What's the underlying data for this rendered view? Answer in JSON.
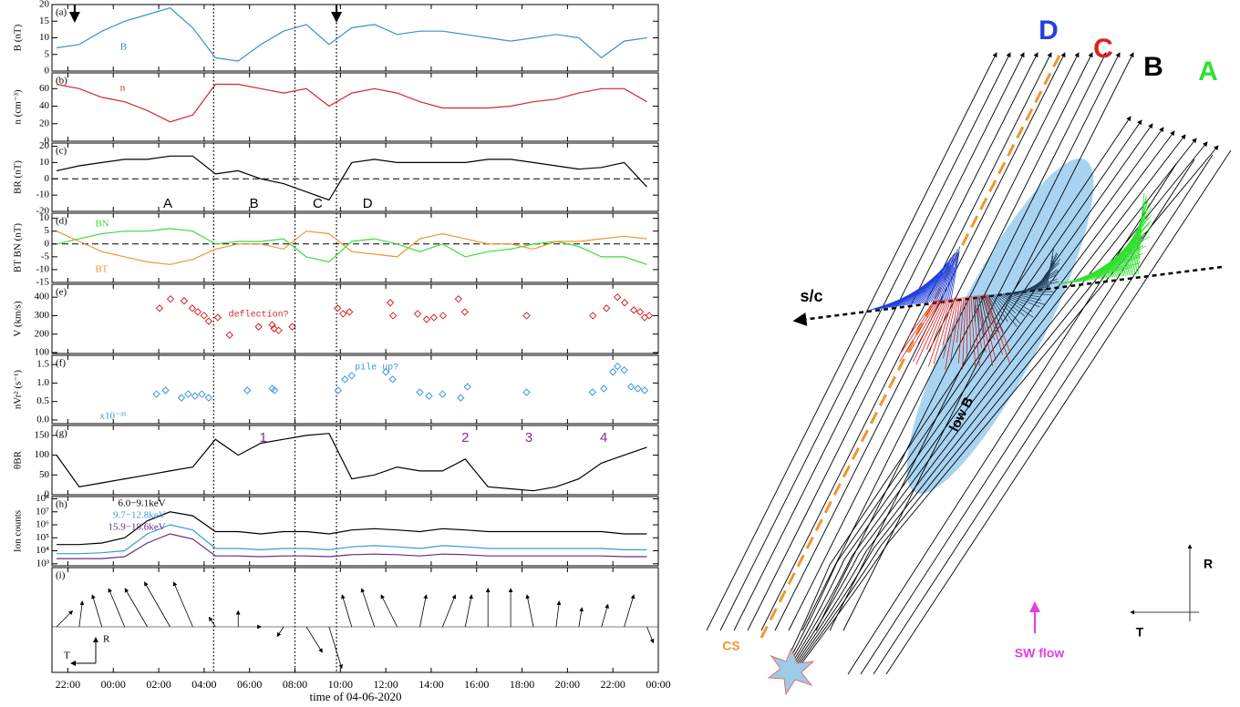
{
  "time_axis": {
    "xlim": [
      -2.7,
      24.0
    ],
    "xticks": [
      {
        "value": -2,
        "label": "22:00"
      },
      {
        "value": 0,
        "label": "00:00"
      },
      {
        "value": 2,
        "label": "02:00"
      },
      {
        "value": 4,
        "label": "04:00"
      },
      {
        "value": 6,
        "label": "06:00"
      },
      {
        "value": 8,
        "label": "08:00"
      },
      {
        "value": 10,
        "label": "10:00"
      },
      {
        "value": 12,
        "label": "12:00"
      },
      {
        "value": 14,
        "label": "14:00"
      },
      {
        "value": 16,
        "label": "16:00"
      },
      {
        "value": 18,
        "label": "18:00"
      },
      {
        "value": 20,
        "label": "20:00"
      },
      {
        "value": 22,
        "label": "22:00"
      },
      {
        "value": 24,
        "label": "00:00"
      }
    ],
    "xlabel": "time of 04-06-2020",
    "event_times": [
      4.42,
      8.0,
      9.83
    ]
  },
  "chart_data": [
    {
      "type": "line",
      "label": "(a)",
      "ylabel": "B (nT)",
      "ylim": [
        0,
        20
      ],
      "yticks": [
        0,
        5,
        10,
        15,
        20
      ],
      "arrow_times": [
        -1.7,
        9.83
      ],
      "x": [
        -2.5,
        -1.5,
        -0.5,
        0.5,
        1.5,
        2.5,
        3.5,
        4.5,
        5.5,
        6.5,
        7.5,
        8.5,
        9.5,
        10.5,
        11.5,
        12.5,
        13.5,
        14.5,
        15.5,
        16.5,
        17.5,
        18.5,
        19.5,
        20.5,
        21.5,
        22.5,
        23.5
      ],
      "series": [
        {
          "name": "B",
          "color": "#3a8fdc",
          "values": [
            7,
            8,
            12,
            15,
            17,
            19,
            13,
            4,
            3,
            8,
            12,
            14,
            8,
            13,
            14,
            11,
            12,
            12,
            11,
            10,
            9,
            10,
            11,
            10,
            4,
            9,
            10
          ]
        }
      ]
    },
    {
      "type": "line",
      "label": "(b)",
      "ylabel": "n (cm⁻³)",
      "ylim": [
        0,
        78
      ],
      "yticks": [
        0,
        20,
        40,
        60
      ],
      "x": [
        -2.5,
        -1.5,
        -0.5,
        0.5,
        1.5,
        2.5,
        3.5,
        4.5,
        5.5,
        6.5,
        7.5,
        8.5,
        9.5,
        10.5,
        11.5,
        12.5,
        13.5,
        14.5,
        15.5,
        16.5,
        17.5,
        18.5,
        19.5,
        20.5,
        21.5,
        22.5,
        23.5
      ],
      "series": [
        {
          "name": "n",
          "color": "#d62728",
          "values": [
            65,
            60,
            50,
            45,
            35,
            22,
            30,
            65,
            65,
            60,
            55,
            60,
            40,
            55,
            60,
            55,
            45,
            38,
            38,
            38,
            40,
            45,
            48,
            55,
            60,
            60,
            45
          ]
        }
      ]
    },
    {
      "type": "line",
      "label": "(c)",
      "ylabel": "BR (nT)",
      "ylim": [
        -20,
        22
      ],
      "yticks": [
        -20,
        -10,
        0,
        10,
        20
      ],
      "zero_line": true,
      "regions": [
        "A",
        "B",
        "C",
        "D"
      ],
      "x": [
        -2.5,
        -1.5,
        -0.5,
        0.5,
        1.5,
        2.5,
        3.5,
        4.5,
        5.5,
        6.5,
        7.5,
        8.5,
        9.5,
        10.5,
        11.5,
        12.5,
        13.5,
        14.5,
        15.5,
        16.5,
        17.5,
        18.5,
        19.5,
        20.5,
        21.5,
        22.5,
        23.5
      ],
      "series": [
        {
          "color": "#000000",
          "values": [
            5,
            8,
            10,
            12,
            12,
            14,
            14,
            3,
            5,
            0,
            -3,
            -8,
            -13,
            10,
            12,
            10,
            10,
            10,
            10,
            12,
            12,
            10,
            8,
            6,
            7,
            10,
            -5
          ]
        }
      ]
    },
    {
      "type": "line",
      "label": "(d)",
      "ylabel": "BT BN (nT)",
      "ylim": [
        -15,
        12
      ],
      "yticks": [
        -15,
        -10,
        -5,
        0,
        5,
        10
      ],
      "zero_line": true,
      "x": [
        -2.5,
        -1.5,
        -0.5,
        0.5,
        1.5,
        2.5,
        3.5,
        4.5,
        5.5,
        6.5,
        7.5,
        8.5,
        9.5,
        10.5,
        11.5,
        12.5,
        13.5,
        14.5,
        15.5,
        16.5,
        17.5,
        18.5,
        19.5,
        20.5,
        21.5,
        22.5,
        23.5
      ],
      "series": [
        {
          "name": "BN",
          "color": "#3ddc3d",
          "values": [
            0,
            2,
            4,
            5,
            5,
            6,
            5,
            0,
            1,
            1,
            2,
            -5,
            -7,
            1,
            2,
            0,
            -3,
            0,
            -5,
            -3,
            -2,
            0,
            1,
            -1,
            -5,
            -5,
            -8
          ]
        },
        {
          "name": "BT",
          "color": "#f0962e",
          "values": [
            5,
            1,
            -3,
            -5,
            -7,
            -8,
            -6,
            -2,
            0,
            0,
            -2,
            5,
            4,
            -3,
            -4,
            -5,
            2,
            4,
            2,
            0,
            0,
            -2,
            1,
            1,
            2,
            3,
            2
          ]
        }
      ]
    },
    {
      "type": "scatter",
      "label": "(e)",
      "ylabel": "V (km/s)",
      "ylim": [
        95,
        470
      ],
      "yticks": [
        100,
        200,
        300,
        400
      ],
      "annotation": "deflection?",
      "x": [
        2.04,
        2.52,
        3.12,
        3.48,
        3.72,
        4.0,
        4.2,
        4.6,
        5.12,
        6.4,
        7.0,
        7.08,
        7.28,
        7.88,
        9.88,
        10.12,
        10.4,
        12.2,
        12.32,
        13.4,
        13.8,
        14.12,
        14.52,
        15.2,
        15.48,
        18.2,
        21.12,
        21.72,
        22.2,
        22.52,
        22.92,
        23.2,
        23.4,
        23.6
      ],
      "series": [
        {
          "color": "#d62728",
          "values": [
            340,
            390,
            380,
            340,
            320,
            300,
            270,
            290,
            195,
            240,
            250,
            230,
            220,
            240,
            340,
            310,
            320,
            370,
            300,
            310,
            280,
            290,
            300,
            390,
            320,
            300,
            300,
            340,
            400,
            370,
            330,
            320,
            290,
            300
          ]
        }
      ]
    },
    {
      "type": "scatter",
      "label": "(f)",
      "ylabel": "nVr² (s⁻¹)",
      "ylim": [
        -0.1,
        1.75
      ],
      "yticks": [
        {
          "value": 0,
          "label": "0.0"
        },
        0.5,
        {
          "value": 1,
          "label": "1.0"
        },
        1.5
      ],
      "annotation": "pile up?",
      "scale_note": "x10⁻³⁵",
      "x": [
        1.9,
        2.3,
        3.0,
        3.3,
        3.6,
        3.9,
        4.2,
        5.9,
        7.0,
        7.1,
        9.9,
        10.2,
        10.5,
        12.0,
        12.3,
        13.5,
        13.9,
        14.5,
        15.3,
        15.6,
        18.2,
        21.1,
        21.6,
        22.0,
        22.2,
        22.5,
        22.8,
        23.1,
        23.4
      ],
      "series": [
        {
          "color": "#3a9ad9",
          "values": [
            0.7,
            0.8,
            0.6,
            0.7,
            0.65,
            0.7,
            0.6,
            0.8,
            0.85,
            0.8,
            0.8,
            1.1,
            1.2,
            1.3,
            1.1,
            0.75,
            0.65,
            0.7,
            0.6,
            0.9,
            0.75,
            0.75,
            0.85,
            1.3,
            1.45,
            1.35,
            0.9,
            0.85,
            0.8
          ]
        }
      ]
    },
    {
      "type": "line",
      "label": "(g)",
      "ylabel": "θBR",
      "ylim": [
        0,
        175
      ],
      "yticks": [
        0,
        50,
        100,
        150
      ],
      "markers": [
        "1",
        "2",
        "3",
        "4"
      ],
      "x": [
        -2.5,
        -1.5,
        -0.5,
        0.5,
        1.5,
        2.5,
        3.5,
        4.5,
        5.5,
        6.5,
        7.5,
        8.5,
        9.5,
        10.5,
        11.5,
        12.5,
        13.5,
        14.5,
        15.5,
        16.5,
        17.5,
        18.5,
        19.5,
        20.5,
        21.5,
        22.5,
        23.5
      ],
      "series": [
        {
          "color": "#000000",
          "values": [
            100,
            20,
            30,
            40,
            50,
            60,
            70,
            140,
            100,
            130,
            140,
            150,
            155,
            40,
            50,
            70,
            60,
            60,
            90,
            20,
            15,
            10,
            20,
            40,
            80,
            100,
            120
          ]
        }
      ]
    },
    {
      "type": "line",
      "label": "(h)",
      "ylabel": "Ion counts",
      "log": true,
      "ylim": [
        700,
        150000000
      ],
      "yticks": [
        {
          "value": 1000,
          "label": "10³"
        },
        {
          "value": 10000,
          "label": "10⁴"
        },
        {
          "value": 100000,
          "label": "10⁵"
        },
        {
          "value": 1000000,
          "label": "10⁶"
        },
        {
          "value": 10000000,
          "label": "10⁷"
        },
        {
          "value": 100000000,
          "label": "10⁸"
        }
      ],
      "x": [
        -2.5,
        -1.5,
        -0.5,
        0.5,
        1.5,
        2.5,
        3.5,
        4.5,
        5.5,
        6.5,
        7.5,
        8.5,
        9.5,
        10.5,
        11.5,
        12.5,
        13.5,
        14.5,
        15.5,
        16.5,
        17.5,
        18.5,
        19.5,
        20.5,
        21.5,
        22.5,
        23.5
      ],
      "series": [
        {
          "name": "6.0−9.1keV",
          "color": "#000000",
          "values": [
            30000,
            30000,
            40000,
            100000,
            2000000,
            10000000,
            5000000,
            300000,
            300000,
            200000,
            300000,
            300000,
            200000,
            400000,
            500000,
            400000,
            300000,
            500000,
            400000,
            300000,
            300000,
            300000,
            300000,
            300000,
            300000,
            200000,
            200000
          ]
        },
        {
          "name": "9.7−12.8keV",
          "color": "#3a9ad9",
          "values": [
            6000,
            6000,
            7000,
            10000,
            200000,
            1000000,
            400000,
            15000,
            15000,
            12000,
            15000,
            15000,
            12000,
            20000,
            25000,
            20000,
            15000,
            25000,
            20000,
            15000,
            15000,
            15000,
            15000,
            15000,
            15000,
            12000,
            12000
          ]
        },
        {
          "name": "15.9−18.6keV",
          "color": "#6a2a8a",
          "values": [
            2500,
            2500,
            2500,
            3500,
            40000,
            200000,
            80000,
            4000,
            4000,
            3500,
            4000,
            4000,
            3500,
            5000,
            5500,
            5000,
            4000,
            5500,
            5000,
            4000,
            4000,
            4000,
            4000,
            4000,
            4000,
            3500,
            3500
          ]
        }
      ]
    },
    {
      "type": "quiver",
      "label": "(i)",
      "axes": [
        "R",
        "T"
      ],
      "x": [
        -2.5,
        -1.5,
        -0.5,
        0.5,
        1.5,
        2.5,
        3.5,
        4.5,
        5.5,
        6.5,
        7.5,
        8.5,
        9.5,
        10.5,
        11.5,
        12.5,
        13.5,
        14.5,
        15.5,
        16.5,
        17.5,
        18.5,
        19.5,
        20.5,
        21.5,
        22.5,
        23.5
      ],
      "u": [
        5,
        1,
        -3,
        -5,
        -7,
        -8,
        -6,
        -2,
        0,
        0,
        -2,
        5,
        4,
        -3,
        -4,
        -5,
        2,
        4,
        2,
        0,
        0,
        -2,
        1,
        1,
        2,
        3,
        2
      ],
      "v": [
        5,
        8,
        10,
        12,
        12,
        14,
        14,
        3,
        5,
        0,
        -3,
        -8,
        -13,
        10,
        12,
        10,
        10,
        10,
        10,
        12,
        12,
        10,
        8,
        6,
        7,
        10,
        -5
      ]
    }
  ],
  "diagram": {
    "regions": [
      "D",
      "C",
      "B",
      "A"
    ],
    "region_colors": [
      "#2040e0",
      "#e02020",
      "#000000",
      "#30e030"
    ],
    "spacecraft": "s/c",
    "low_b": "low B",
    "current_sheet": "CS",
    "flow": "SW flow",
    "axes": [
      "R",
      "T"
    ]
  }
}
